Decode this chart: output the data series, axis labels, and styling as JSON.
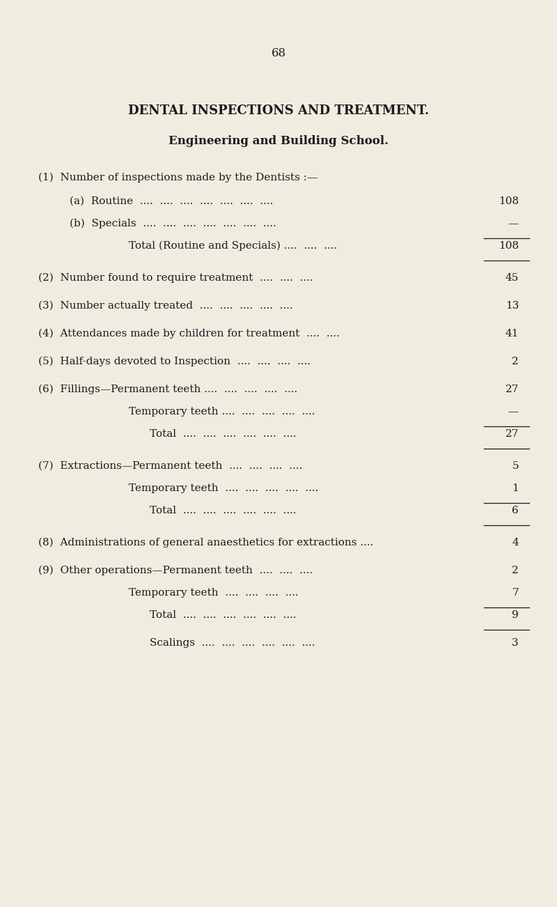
{
  "page_number": "68",
  "title": "DENTAL INSPECTIONS AND TREATMENT.",
  "subtitle": "Engineering and Building School.",
  "background_color": "#f0ece0",
  "text_color": "#1a1a1a",
  "fig_width": 8.0,
  "fig_height": 13.02,
  "dpi": 100,
  "rows": [
    {
      "label": "(1)  Number of inspections made by the Dentists :—",
      "value": "",
      "indent": 0,
      "underline_before": false,
      "underline_after": false,
      "extra_before": 0,
      "extra_after": 0
    },
    {
      "label": "(a)  Routine  ....  ....  ....  ....  ....  ....  ....",
      "value": "108",
      "indent": 1,
      "underline_before": false,
      "underline_after": false,
      "extra_before": 2,
      "extra_after": 0
    },
    {
      "label": "(b)  Specials  ....  ....  ....  ....  ....  ....  ....",
      "value": "—",
      "indent": 1,
      "underline_before": false,
      "underline_after": true,
      "extra_before": 0,
      "extra_after": 0
    },
    {
      "label": "Total (Routine and Specials) ....  ....  ....",
      "value": "108",
      "indent": 2,
      "underline_before": false,
      "underline_after": true,
      "extra_before": 0,
      "extra_after": 14
    },
    {
      "label": "(2)  Number found to require treatment  ....  ....  ....",
      "value": "45",
      "indent": 0,
      "underline_before": false,
      "underline_after": false,
      "extra_before": 0,
      "extra_after": 0
    },
    {
      "label": "(3)  Number actually treated  ....  ....  ....  ....  ....",
      "value": "13",
      "indent": 0,
      "underline_before": false,
      "underline_after": false,
      "extra_before": 8,
      "extra_after": 0
    },
    {
      "label": "(4)  Attendances made by children for treatment  ....  ....",
      "value": "41",
      "indent": 0,
      "underline_before": false,
      "underline_after": false,
      "extra_before": 8,
      "extra_after": 0
    },
    {
      "label": "(5)  Half-days devoted to Inspection  ....  ....  ....  ....",
      "value": "2",
      "indent": 0,
      "underline_before": false,
      "underline_after": false,
      "extra_before": 8,
      "extra_after": 0
    },
    {
      "label": "(6)  Fillings—Permanent teeth ....  ....  ....  ....  ....",
      "value": "27",
      "indent": 0,
      "underline_before": false,
      "underline_after": false,
      "extra_before": 8,
      "extra_after": 0
    },
    {
      "label": "Temporary teeth ....  ....  ....  ....  ....",
      "value": "—",
      "indent": 2,
      "underline_before": false,
      "underline_after": true,
      "extra_before": 0,
      "extra_after": 0
    },
    {
      "label": "Total  ....  ....  ....  ....  ....  ....",
      "value": "27",
      "indent": 3,
      "underline_before": false,
      "underline_after": true,
      "extra_before": 0,
      "extra_after": 14
    },
    {
      "label": "(7)  Extractions—Permanent teeth  ....  ....  ....  ....",
      "value": "5",
      "indent": 0,
      "underline_before": false,
      "underline_after": false,
      "extra_before": 0,
      "extra_after": 0
    },
    {
      "label": "Temporary teeth  ....  ....  ....  ....  ....",
      "value": "1",
      "indent": 2,
      "underline_before": false,
      "underline_after": true,
      "extra_before": 0,
      "extra_after": 0
    },
    {
      "label": "Total  ....  ....  ....  ....  ....  ....",
      "value": "6",
      "indent": 3,
      "underline_before": false,
      "underline_after": true,
      "extra_before": 0,
      "extra_after": 14
    },
    {
      "label": "(8)  Administrations of general anaesthetics for extractions ....",
      "value": "4",
      "indent": 0,
      "underline_before": false,
      "underline_after": false,
      "extra_before": 0,
      "extra_after": 0
    },
    {
      "label": "(9)  Other operations—Permanent teeth  ....  ....  ....",
      "value": "2",
      "indent": 0,
      "underline_before": false,
      "underline_after": false,
      "extra_before": 8,
      "extra_after": 0
    },
    {
      "label": "Temporary teeth  ....  ....  ....  ....",
      "value": "7",
      "indent": 2,
      "underline_before": false,
      "underline_after": true,
      "extra_before": 0,
      "extra_after": 0
    },
    {
      "label": "Total  ....  ....  ....  ....  ....  ....",
      "value": "9",
      "indent": 3,
      "underline_before": false,
      "underline_after": true,
      "extra_before": 0,
      "extra_after": 0
    },
    {
      "label": "Scalings  ....  ....  ....  ....  ....  ....",
      "value": "3",
      "indent": 3,
      "underline_before": false,
      "underline_after": false,
      "extra_before": 8,
      "extra_after": 0
    }
  ]
}
